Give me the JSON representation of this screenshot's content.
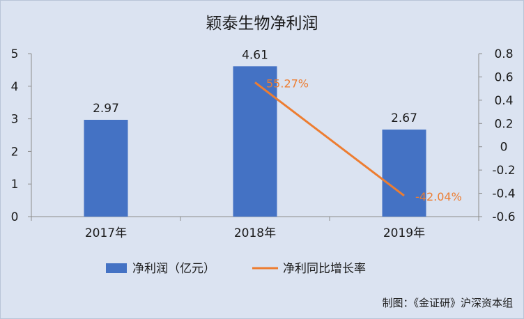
{
  "chart_data": {
    "type": "bar",
    "title": "颖泰生物净利润",
    "categories": [
      "2017年",
      "2018年",
      "2019年"
    ],
    "series": [
      {
        "name": "净利润（亿元）",
        "type": "bar",
        "axis": "left",
        "values": [
          2.97,
          4.61,
          2.67
        ],
        "labels": [
          "2.97",
          "4.61",
          "2.67"
        ]
      },
      {
        "name": "净利同比增长率",
        "type": "line",
        "axis": "right",
        "x": [
          "2018年",
          "2019年"
        ],
        "values": [
          0.5527,
          -0.4204
        ],
        "labels": [
          "55.27%",
          "-42.04%"
        ]
      }
    ],
    "left_axis": {
      "min": 0,
      "max": 5,
      "ticks": [
        "0",
        "1",
        "2",
        "3",
        "4",
        "5"
      ]
    },
    "right_axis": {
      "min": -0.6,
      "max": 0.8,
      "ticks": [
        "-0.6",
        "-0.4",
        "-0.2",
        "0",
        "0.2",
        "0.4",
        "0.6",
        "0.8"
      ]
    },
    "grid": false,
    "legend_position": "bottom",
    "colors": {
      "bar": "#4472c4",
      "line": "#ed7d31",
      "background": "#dbe3f1"
    },
    "credit": "制图：《金证研》沪深资本组"
  }
}
